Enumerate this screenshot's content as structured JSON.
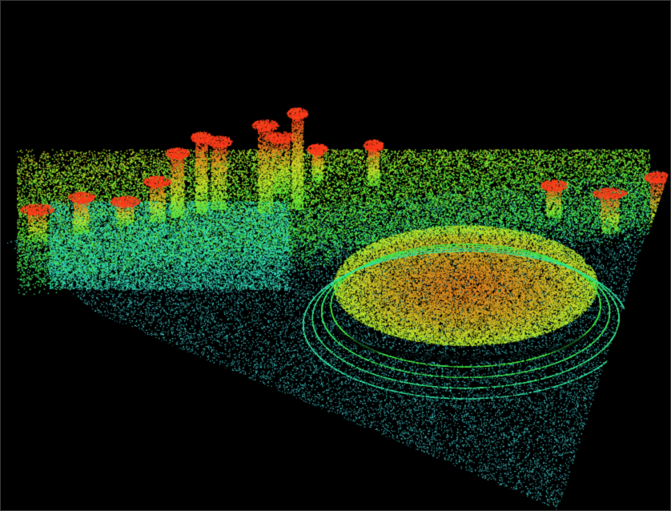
{
  "scene": {
    "type": "lidar-point-cloud",
    "subject": "urban-area-with-dome-stadium",
    "view": "perspective-oblique",
    "colormap": "elevation",
    "background_color": "#000000",
    "colors": {
      "ground": "#46c8d8",
      "low": "#2fe0c0",
      "mid": "#3ee83a",
      "upper": "#c8e62a",
      "dome": "#e0a020",
      "high": "#ff2a1a"
    }
  }
}
